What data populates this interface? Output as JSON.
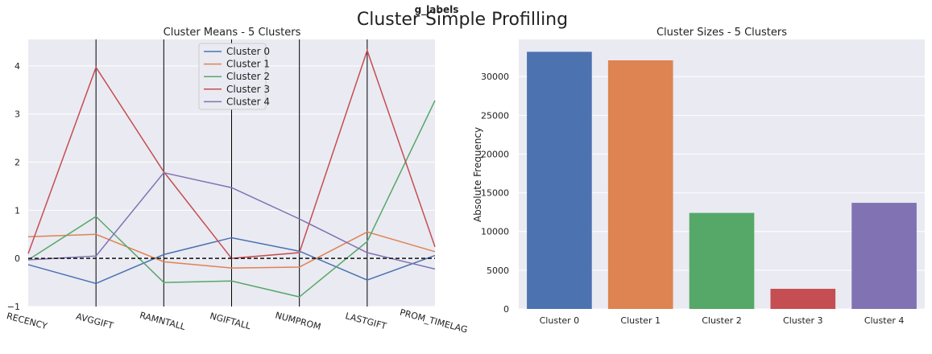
{
  "figure": {
    "suptitle": "Cluster Simple Profilling",
    "legend_title": "g_labels"
  },
  "chart_data": [
    {
      "type": "line",
      "title": "Cluster Means - 5 Clusters",
      "categories": [
        "RECENCY",
        "AVGGIFT",
        "RAMNTALL",
        "NGIFTALL",
        "NUMPROM",
        "LASTGIFT",
        "PROM_TIMELAG"
      ],
      "yticks": [
        "4",
        "3",
        "2",
        "1",
        "0",
        "−1"
      ],
      "ylim": [
        -1,
        4.55
      ],
      "reference_line": 0,
      "grid": true,
      "legend_position": "top-center",
      "series": [
        {
          "name": "Cluster 0",
          "color": "#4c72b0",
          "values": [
            -0.13,
            -0.52,
            0.08,
            0.43,
            0.15,
            -0.45,
            0.06
          ]
        },
        {
          "name": "Cluster 1",
          "color": "#dd8452",
          "values": [
            0.45,
            0.5,
            -0.07,
            -0.2,
            -0.18,
            0.55,
            0.14
          ]
        },
        {
          "name": "Cluster 2",
          "color": "#55a868",
          "values": [
            -0.03,
            0.87,
            -0.5,
            -0.47,
            -0.8,
            0.35,
            3.28
          ]
        },
        {
          "name": "Cluster 3",
          "color": "#c44e52",
          "values": [
            0.1,
            3.97,
            1.8,
            0.0,
            0.12,
            4.32,
            0.24
          ]
        },
        {
          "name": "Cluster 4",
          "color": "#8172b3",
          "values": [
            -0.03,
            0.05,
            1.78,
            1.47,
            0.82,
            0.12,
            -0.22
          ]
        }
      ]
    },
    {
      "type": "bar",
      "title": "Cluster Sizes - 5 Clusters",
      "ylabel": "Absolute Frequency",
      "categories": [
        "Cluster 0",
        "Cluster 1",
        "Cluster 2",
        "Cluster 3",
        "Cluster 4"
      ],
      "values": [
        33200,
        32100,
        12400,
        2600,
        13700
      ],
      "colors": [
        "#4c72b0",
        "#dd8452",
        "#55a868",
        "#c44e52",
        "#8172b3"
      ],
      "yticks": [
        "30000",
        "25000",
        "20000",
        "15000",
        "10000",
        "5000",
        "0"
      ],
      "ylim": [
        0,
        34800
      ],
      "grid": true
    }
  ]
}
